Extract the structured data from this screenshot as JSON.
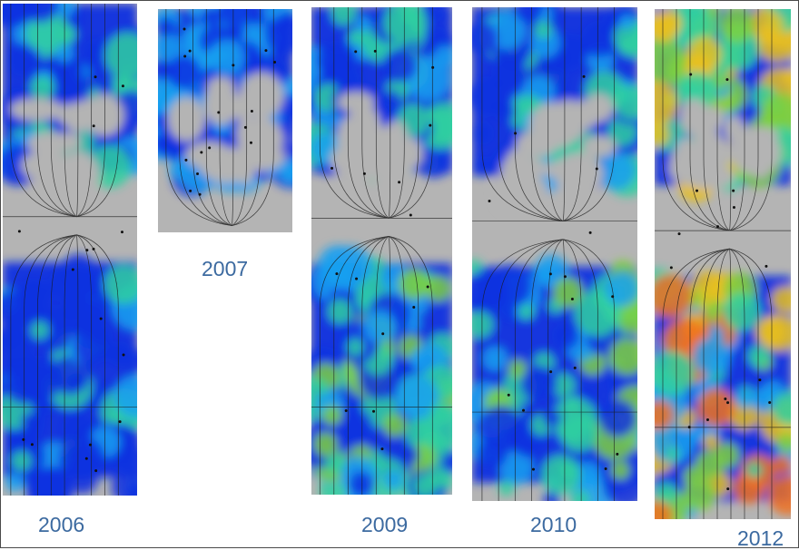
{
  "panels": [
    {
      "key": "p2006",
      "year": "2006",
      "mode": "low"
    },
    {
      "key": "p2007",
      "year": "2007",
      "mode": "top"
    },
    {
      "key": "p2009",
      "year": "2009",
      "mode": "mid"
    },
    {
      "key": "p2010",
      "year": "2010",
      "mode": "mid"
    },
    {
      "key": "p2012",
      "year": "2012",
      "mode": "high"
    }
  ],
  "colors": {
    "background": "#b4b4b4",
    "low": "#1030e0",
    "mid_low": "#1aa0f0",
    "mid": "#30d0a0",
    "mid_high": "#7ed040",
    "high": "#e8c020",
    "peak": "#f07020",
    "year_label": "#3c6aa0"
  }
}
